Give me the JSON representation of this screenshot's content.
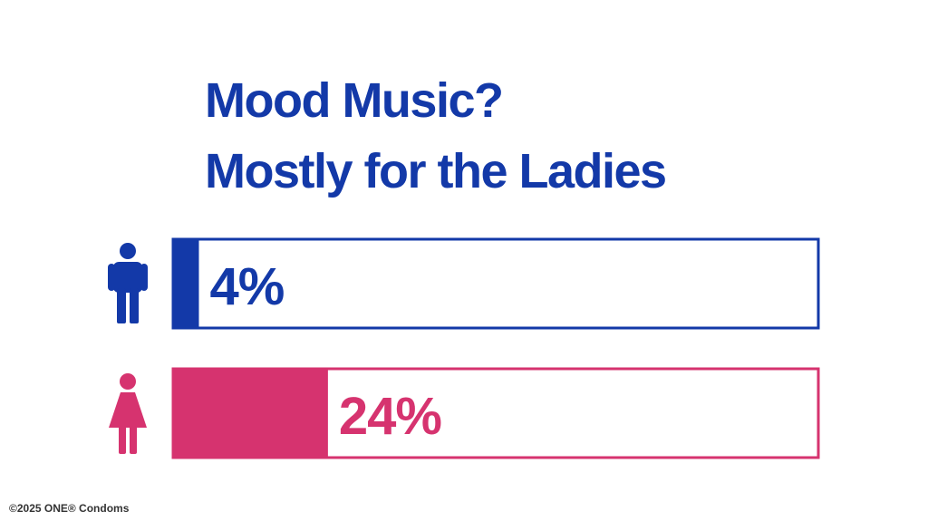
{
  "chart_data": {
    "type": "hbar",
    "title": [
      "Mood Music?",
      "Mostly for the Ladies"
    ],
    "categories": [
      null,
      null
    ],
    "values": [
      4,
      24
    ],
    "value_labels": [
      "4%",
      "24%"
    ],
    "colors": [
      "#1339a8",
      "#d6336f"
    ],
    "xlim": [
      0,
      100
    ],
    "footer": "©2025 ONE® Condoms"
  }
}
